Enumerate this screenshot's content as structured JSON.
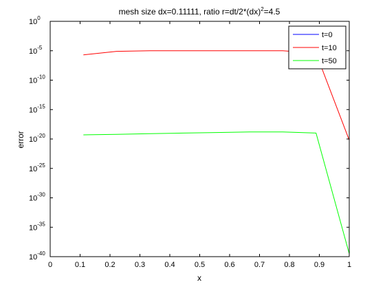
{
  "chart_data": {
    "type": "line",
    "title": "mesh size dx=0.11111, ratio r=dt/2*(dx)",
    "title_sup": "2",
    "title_tail": "=4.5",
    "xlabel": "x",
    "ylabel": "error",
    "xlim": [
      0,
      1
    ],
    "ylim_exp": [
      -40,
      0
    ],
    "yscale": "log",
    "grid": false,
    "legend_position": "top-right",
    "x_ticks": [
      "0",
      "0.1",
      "0.2",
      "0.3",
      "0.4",
      "0.5",
      "0.6",
      "0.7",
      "0.8",
      "0.9",
      "1"
    ],
    "y_tick_base": "10",
    "y_tick_exponents": [
      "0",
      "-5",
      "-10",
      "-15",
      "-20",
      "-25",
      "-30",
      "-35",
      "-40"
    ],
    "series": [
      {
        "name": "t=0",
        "color": "#0000ff",
        "x": [
          0.11111,
          0.22222,
          0.33333,
          0.44444,
          0.55556,
          0.66667,
          0.77778,
          0.88889,
          1.0
        ],
        "log10_y": []
      },
      {
        "name": "t=10",
        "color": "#ff0000",
        "x": [
          0.11111,
          0.22222,
          0.33333,
          0.44444,
          0.55556,
          0.66667,
          0.77778,
          0.88889,
          1.0
        ],
        "log10_y": [
          -5.7,
          -5.1,
          -5.0,
          -5.0,
          -5.0,
          -5.0,
          -5.0,
          -5.4,
          -20.2
        ]
      },
      {
        "name": "t=50",
        "color": "#00ff00",
        "x": [
          0.11111,
          0.22222,
          0.33333,
          0.44444,
          0.55556,
          0.66667,
          0.77778,
          0.88889,
          1.0
        ],
        "log10_y": [
          -19.3,
          -19.2,
          -19.1,
          -19.0,
          -18.9,
          -18.8,
          -18.8,
          -19.0,
          -39.5
        ]
      }
    ]
  }
}
